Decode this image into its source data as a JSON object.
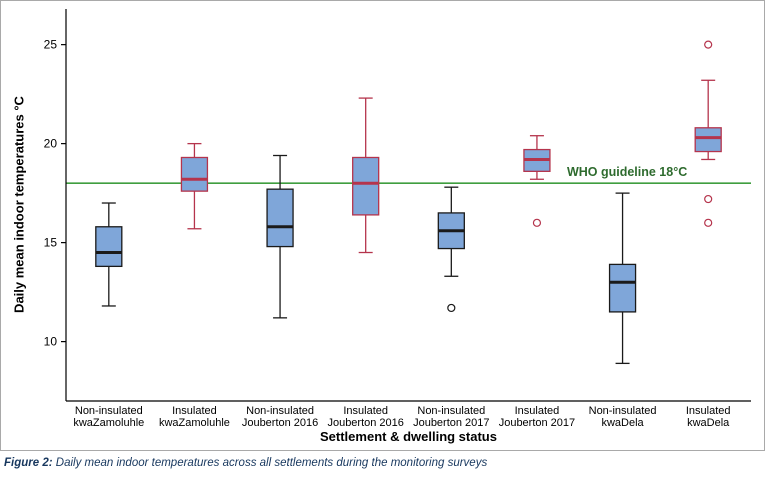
{
  "figure": {
    "caption_prefix": "Figure 2:",
    "caption_text": " Daily mean indoor temperatures across all settlements during the monitoring surveys"
  },
  "chart_data": {
    "type": "boxplot",
    "title": "",
    "ylabel": "Daily mean indoor temperatures °C",
    "xlabel": "Settlement & dwelling status",
    "ylim": [
      7,
      26.8
    ],
    "yticks": [
      10,
      15,
      20,
      25
    ],
    "grid": false,
    "legend": "none",
    "reference_line": {
      "value": 18,
      "label": "WHO guideline 18°C",
      "line_color": "#3f9e3f",
      "label_color": "#2e6b2e"
    },
    "colors": {
      "box_fill": "#7fa6d9",
      "non_insulated_stroke": "#1a1a1a",
      "insulated_stroke": "#b5344c",
      "axis": "#000000"
    },
    "boxes": [
      {
        "label_line1": "Non-insulated",
        "label_line2": "kwaZamoluhle",
        "group": "non-insulated",
        "whisker_low": 11.8,
        "q1": 13.8,
        "median": 14.5,
        "q3": 15.8,
        "whisker_high": 17.0,
        "outliers": []
      },
      {
        "label_line1": "Insulated",
        "label_line2": "kwaZamoluhle",
        "group": "insulated",
        "whisker_low": 15.7,
        "q1": 17.6,
        "median": 18.2,
        "q3": 19.3,
        "whisker_high": 20.0,
        "outliers": []
      },
      {
        "label_line1": "Non-insulated",
        "label_line2": "Jouberton 2016",
        "group": "non-insulated",
        "whisker_low": 11.2,
        "q1": 14.8,
        "median": 15.8,
        "q3": 17.7,
        "whisker_high": 19.4,
        "outliers": []
      },
      {
        "label_line1": "Insulated",
        "label_line2": "Jouberton 2016",
        "group": "insulated",
        "whisker_low": 14.5,
        "q1": 16.4,
        "median": 18.0,
        "q3": 19.3,
        "whisker_high": 22.3,
        "outliers": []
      },
      {
        "label_line1": "Non-insulated",
        "label_line2": "Jouberton 2017",
        "group": "non-insulated",
        "whisker_low": 13.3,
        "q1": 14.7,
        "median": 15.6,
        "q3": 16.5,
        "whisker_high": 17.8,
        "outliers": [
          11.7
        ]
      },
      {
        "label_line1": "Insulated",
        "label_line2": "Jouberton 2017",
        "group": "insulated",
        "whisker_low": 18.2,
        "q1": 18.6,
        "median": 19.2,
        "q3": 19.7,
        "whisker_high": 20.4,
        "outliers": [
          16.0
        ]
      },
      {
        "label_line1": "Non-insulated",
        "label_line2": "kwaDela",
        "group": "non-insulated",
        "whisker_low": 8.9,
        "q1": 11.5,
        "median": 13.0,
        "q3": 13.9,
        "whisker_high": 17.5,
        "outliers": []
      },
      {
        "label_line1": "Insulated",
        "label_line2": "kwaDela",
        "group": "insulated",
        "whisker_low": 19.2,
        "q1": 19.6,
        "median": 20.3,
        "q3": 20.8,
        "whisker_high": 23.2,
        "outliers": [
          25.0,
          17.2,
          16.0
        ]
      }
    ]
  }
}
